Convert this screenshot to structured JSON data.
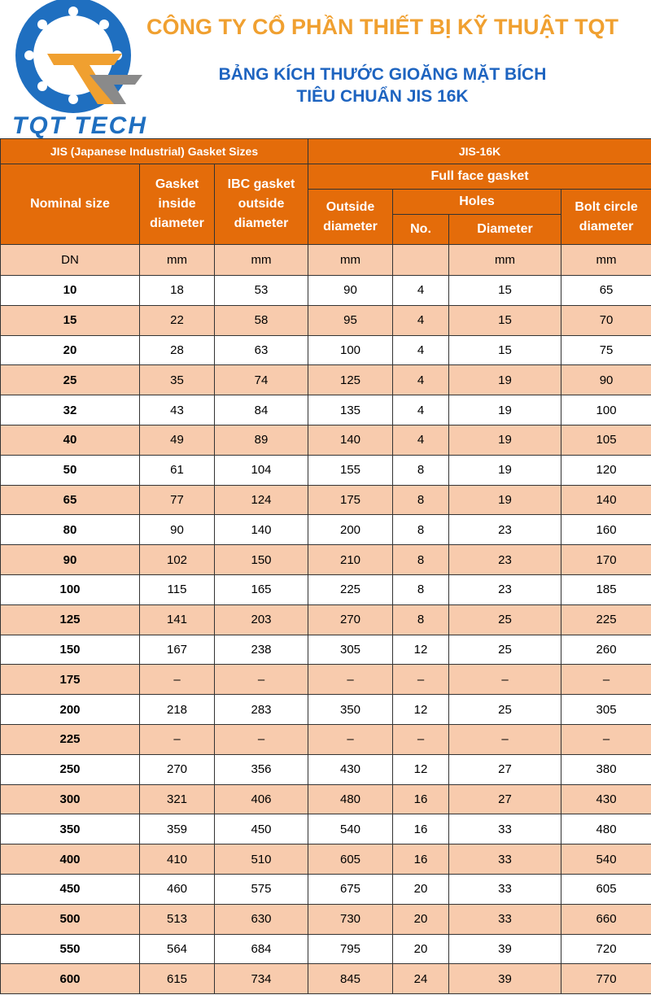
{
  "header": {
    "logo_text": "TQT TECH",
    "company": "CÔNG TY CỔ PHẦN THIẾT BỊ KỸ THUẬT TQT",
    "title_line1": "BẢNG KÍCH THƯỚC GIOĂNG MẶT BÍCH",
    "title_line2": "TIÊU CHUẨN JIS 16K"
  },
  "table": {
    "group_left": "JIS (Japanese Industrial) Gasket Sizes",
    "group_right": "JIS-16K",
    "nominal_size": "Nominal size",
    "gasket_inside": "Gasket inside diameter",
    "ibc_outside": "IBC gasket outside diameter",
    "full_face": "Full face gasket",
    "outside_diameter": "Outside diameter",
    "holes": "Holes",
    "holes_no": "No.",
    "holes_diameter": "Diameter",
    "bolt_circle": "Bolt circle diameter",
    "units": [
      "DN",
      "mm",
      "mm",
      "mm",
      null,
      "mm",
      "mm"
    ],
    "rows": [
      [
        10,
        18,
        53,
        90,
        4,
        15,
        65
      ],
      [
        15,
        22,
        58,
        95,
        4,
        15,
        70
      ],
      [
        20,
        28,
        63,
        100,
        4,
        15,
        75
      ],
      [
        25,
        35,
        74,
        125,
        4,
        19,
        90
      ],
      [
        32,
        43,
        84,
        135,
        4,
        19,
        100
      ],
      [
        40,
        49,
        89,
        140,
        4,
        19,
        105
      ],
      [
        50,
        61,
        104,
        155,
        8,
        19,
        120
      ],
      [
        65,
        77,
        124,
        175,
        8,
        19,
        140
      ],
      [
        80,
        90,
        140,
        200,
        8,
        23,
        160
      ],
      [
        90,
        102,
        150,
        210,
        8,
        23,
        170
      ],
      [
        100,
        115,
        165,
        225,
        8,
        23,
        185
      ],
      [
        125,
        141,
        203,
        270,
        8,
        25,
        225
      ],
      [
        150,
        167,
        238,
        305,
        12,
        25,
        260
      ],
      [
        175,
        "–",
        "–",
        "–",
        "–",
        "–",
        "–"
      ],
      [
        200,
        218,
        283,
        350,
        12,
        25,
        305
      ],
      [
        225,
        "–",
        "–",
        "–",
        "–",
        "–",
        "–"
      ],
      [
        250,
        270,
        356,
        430,
        12,
        27,
        380
      ],
      [
        300,
        321,
        406,
        480,
        16,
        27,
        430
      ],
      [
        350,
        359,
        450,
        540,
        16,
        33,
        480
      ],
      [
        400,
        410,
        510,
        605,
        16,
        33,
        540
      ],
      [
        450,
        460,
        575,
        675,
        20,
        33,
        605
      ],
      [
        500,
        513,
        630,
        730,
        20,
        33,
        660
      ],
      [
        550,
        564,
        684,
        795,
        20,
        39,
        720
      ],
      [
        600,
        615,
        734,
        845,
        24,
        39,
        770
      ]
    ]
  }
}
